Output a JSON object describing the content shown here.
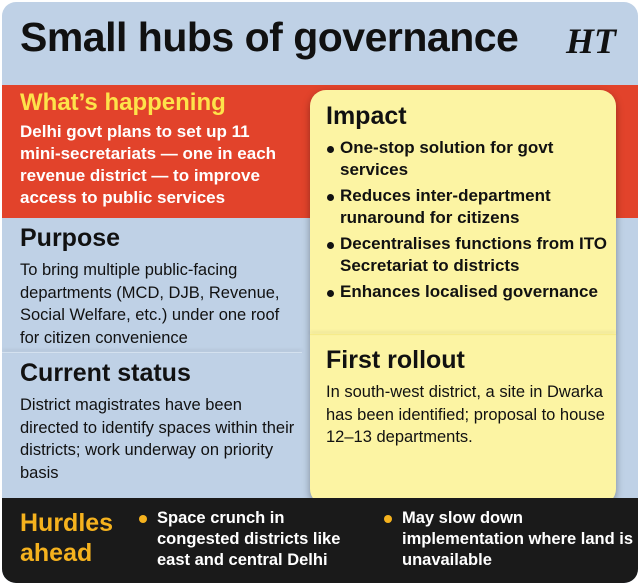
{
  "title": "Small hubs of governance",
  "logo": "HT",
  "whats_happening": {
    "heading": "What’s happening",
    "text": "Delhi govt plans to set up 11 mini-secretariats — one in each revenue district — to improve access to public services"
  },
  "purpose": {
    "heading": "Purpose",
    "text": "To bring multiple public-facing departments (MCD, DJB, Revenue, Social Welfare, etc.) under one roof for citizen convenience"
  },
  "current_status": {
    "heading": "Current status",
    "text": "District magistrates have been directed to identify spaces within their districts; work underway on priority basis"
  },
  "impact": {
    "heading": "Impact",
    "items": [
      "One-stop solution for govt services",
      "Reduces inter-department runaround for citizens",
      "Decentralises functions from ITO Secretariat to districts",
      "Enhances localised governance"
    ]
  },
  "first_rollout": {
    "heading": "First rollout",
    "text": "In south-west district, a site in Dwarka has been identified; proposal to house 12–13 departments."
  },
  "hurdles": {
    "heading": "Hurdles ahead",
    "items": [
      "Space crunch in congested districts like east and central Delhi",
      "May slow down implementation where land is unavailable"
    ]
  },
  "colors": {
    "background": "#bfd1e6",
    "red_band": "#e2432b",
    "highlight_yellow": "#fde34a",
    "panel": "#fcf4a3",
    "bottom_bar": "#1a1a1a",
    "hurdles_orange": "#f5b21e"
  }
}
